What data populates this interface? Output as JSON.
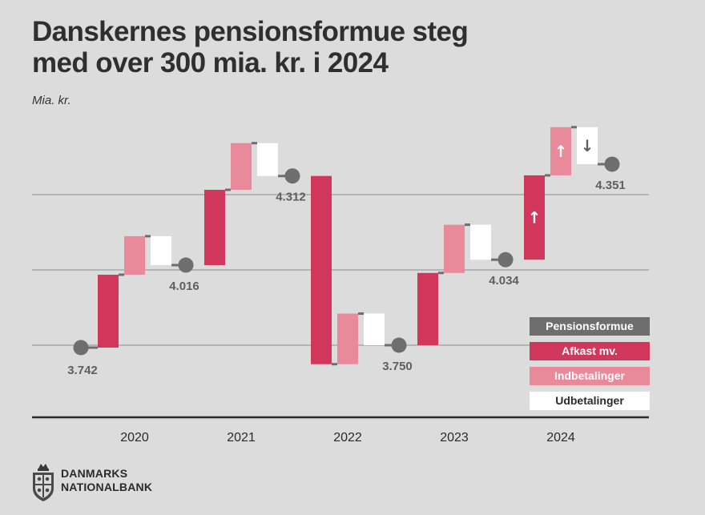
{
  "header": {
    "title_line1": "Danskernes pensionsformue steg",
    "title_line2": "med over 300 mia. kr. i 2024",
    "unit_label": "Mia. kr."
  },
  "colors": {
    "background": "#dcdcdc",
    "pensionsformue": "#6e6e6e",
    "afkast": "#d0375a",
    "indbetalinger": "#e98a9b",
    "udbetalinger": "#ffffff",
    "gridline": "#8c8c8c",
    "axis": "#2a2a2a"
  },
  "chart_data": {
    "type": "waterfall",
    "title": "Danskernes pensionsformue steg med over 300 mia. kr. i 2024",
    "ylabel": "Mia. kr.",
    "ylim": [
      3600,
      4500
    ],
    "gridlines": [
      3750,
      4000,
      4250
    ],
    "categories": [
      "2020",
      "2021",
      "2022",
      "2023",
      "2024"
    ],
    "start_value": 3742,
    "start_label": "3.742",
    "years": [
      {
        "year": "2020",
        "afkast": 242,
        "indbetalinger": 128,
        "udbetalinger": -96,
        "end": 4016,
        "end_label": "4.016",
        "afkast_arrow": "",
        "indbetalinger_arrow": "",
        "udbetalinger_arrow": ""
      },
      {
        "year": "2021",
        "afkast": 250,
        "indbetalinger": 155,
        "udbetalinger": -109,
        "end": 4312,
        "end_label": "4.312",
        "afkast_arrow": "",
        "indbetalinger_arrow": "",
        "udbetalinger_arrow": ""
      },
      {
        "year": "2022",
        "afkast": -625,
        "indbetalinger": 168,
        "udbetalinger": -105,
        "end": 3750,
        "end_label": "3.750",
        "afkast_arrow": "",
        "indbetalinger_arrow": "",
        "udbetalinger_arrow": ""
      },
      {
        "year": "2023",
        "afkast": 240,
        "indbetalinger": 160,
        "udbetalinger": -116,
        "end": 4034,
        "end_label": "4.034",
        "afkast_arrow": "",
        "indbetalinger_arrow": "",
        "udbetalinger_arrow": ""
      },
      {
        "year": "2024",
        "afkast": 280,
        "indbetalinger": 160,
        "udbetalinger": -123,
        "end": 4351,
        "end_label": "4.351",
        "afkast_arrow": "↑",
        "indbetalinger_arrow": "↑",
        "udbetalinger_arrow": "↓"
      }
    ],
    "legend": [
      "Pensionsformue",
      "Afkast mv.",
      "Indbetalinger",
      "Udbetalinger"
    ],
    "legend_position": "bottom-right"
  },
  "legend": {
    "pensionsformue": "Pensionsformue",
    "afkast": "Afkast mv.",
    "indbetalinger": "Indbetalinger",
    "udbetalinger": "Udbetalinger"
  },
  "logo": {
    "line1": "DANMARKS",
    "line2": "NATIONALBANK"
  }
}
